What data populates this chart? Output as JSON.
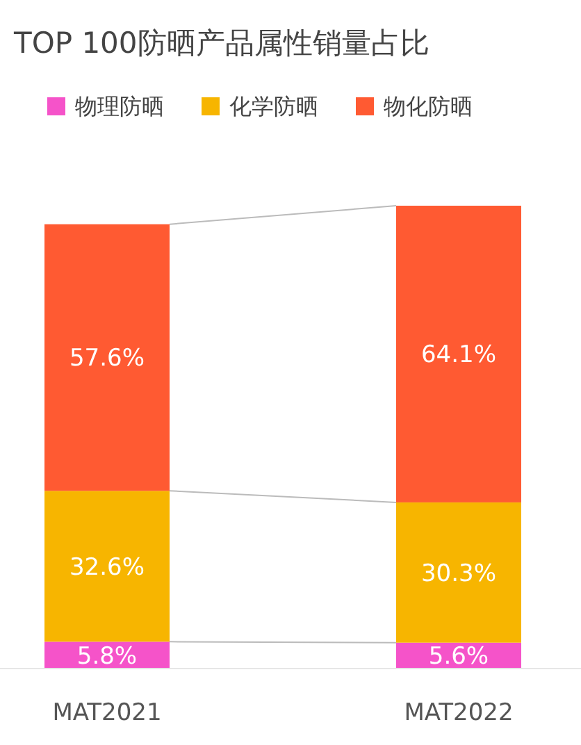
{
  "chart_data": {
    "type": "bar",
    "title": "TOP 100防晒产品属性销量占比",
    "categories": [
      "MAT2021",
      "MAT2022"
    ],
    "stacked": true,
    "legend": "top",
    "series": [
      {
        "name": "物理防晒",
        "color": "#f553c9",
        "values": [
          5.8,
          5.6
        ],
        "value_labels": [
          "5.8%",
          "5.6%"
        ]
      },
      {
        "name": "化学防晒",
        "color": "#f7b500",
        "values": [
          32.6,
          30.3
        ],
        "value_labels": [
          "32.6%",
          "30.3%"
        ]
      },
      {
        "name": "物化防晒",
        "color": "#ff5a32",
        "values": [
          57.6,
          64.1
        ],
        "value_labels": [
          "57.6%",
          "64.1%"
        ]
      }
    ]
  }
}
